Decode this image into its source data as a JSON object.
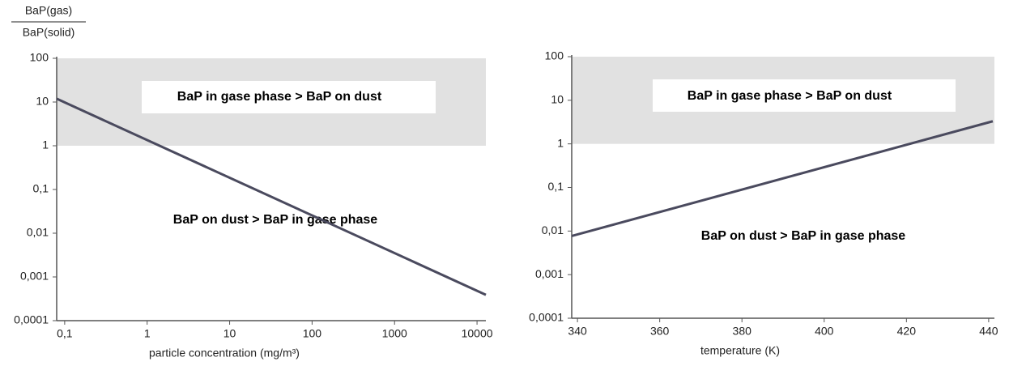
{
  "chart_data": [
    {
      "type": "line",
      "log_x": true,
      "log_y": true,
      "y_label": {
        "numerator": "BaP(gas)",
        "denominator": "BaP(solid)"
      },
      "x_label": "particle concentration (mg/m³)",
      "xlim": [
        0.08,
        12800
      ],
      "ylim": [
        0.0001,
        100
      ],
      "xticks": [
        {
          "value": 0.1,
          "label": "0,1"
        },
        1,
        10,
        100,
        1000,
        10000
      ],
      "yticks": [
        {
          "value": 0.0001,
          "label": "0,0001"
        },
        {
          "value": 0.001,
          "label": "0,001"
        },
        {
          "value": 0.01,
          "label": "0,01"
        },
        {
          "value": 0.1,
          "label": "0,1"
        },
        1,
        10,
        100
      ],
      "shaded_band": {
        "ylim": [
          1,
          100
        ],
        "color": "#e1e1e1"
      },
      "series": [
        {
          "color": "#4a4a5e",
          "x": [
            0.08,
            12800
          ],
          "values": [
            11.9,
            0.00039
          ]
        }
      ],
      "annotations": [
        {
          "text": "BaP in gase phase > BaP on dust",
          "boxed": true
        },
        {
          "text": "BaP on dust > BaP in gase phase",
          "boxed": false
        }
      ]
    },
    {
      "type": "line",
      "log_x": false,
      "log_y": true,
      "x_label": "temperature (K)",
      "xlim": [
        338.6,
        441.4
      ],
      "ylim": [
        0.0001,
        100
      ],
      "xticks": [
        340,
        360,
        380,
        400,
        420,
        440
      ],
      "yticks": [
        {
          "value": 0.0001,
          "label": "0,0001"
        },
        {
          "value": 0.001,
          "label": "0,001"
        },
        {
          "value": 0.01,
          "label": "0,01"
        },
        {
          "value": 0.1,
          "label": "0,1"
        },
        1,
        10,
        100
      ],
      "shaded_band": {
        "ylim": [
          1,
          100
        ],
        "color": "#e1e1e1"
      },
      "series": [
        {
          "color": "#4a4a5e",
          "x": [
            338.6,
            441
          ],
          "values": [
            0.0077,
            3.3
          ]
        }
      ],
      "annotations": [
        {
          "text": "BaP in gase phase > BaP on dust",
          "boxed": true
        },
        {
          "text": "BaP on dust > BaP in gase phase",
          "boxed": false
        }
      ]
    }
  ]
}
